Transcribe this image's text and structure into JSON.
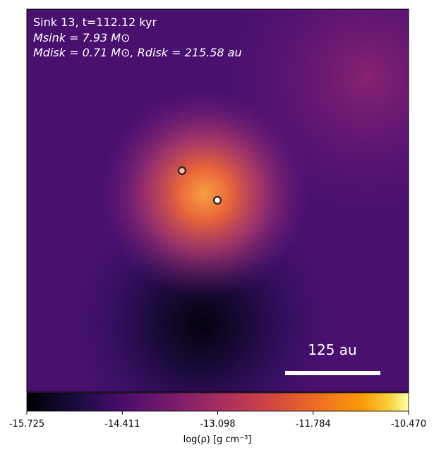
{
  "chart_data": {
    "type": "heatmap",
    "annotations": [
      "Sink 13, t=112.12 kyr",
      "Msink = 7.93 M⊙",
      "Mdisk = 0.71 M⊙, Rdisk = 215.58 au"
    ],
    "scale_bar_label": "125 au",
    "colorbar": {
      "label": "log(ρ) [g cm⁻³]",
      "colormap": "inferno",
      "lim": [
        -15.725,
        -10.47
      ],
      "ticks": [
        -15.725,
        -14.411,
        -13.098,
        -11.784,
        {
          "value": -10.47,
          "label": "-10.470"
        }
      ]
    }
  }
}
